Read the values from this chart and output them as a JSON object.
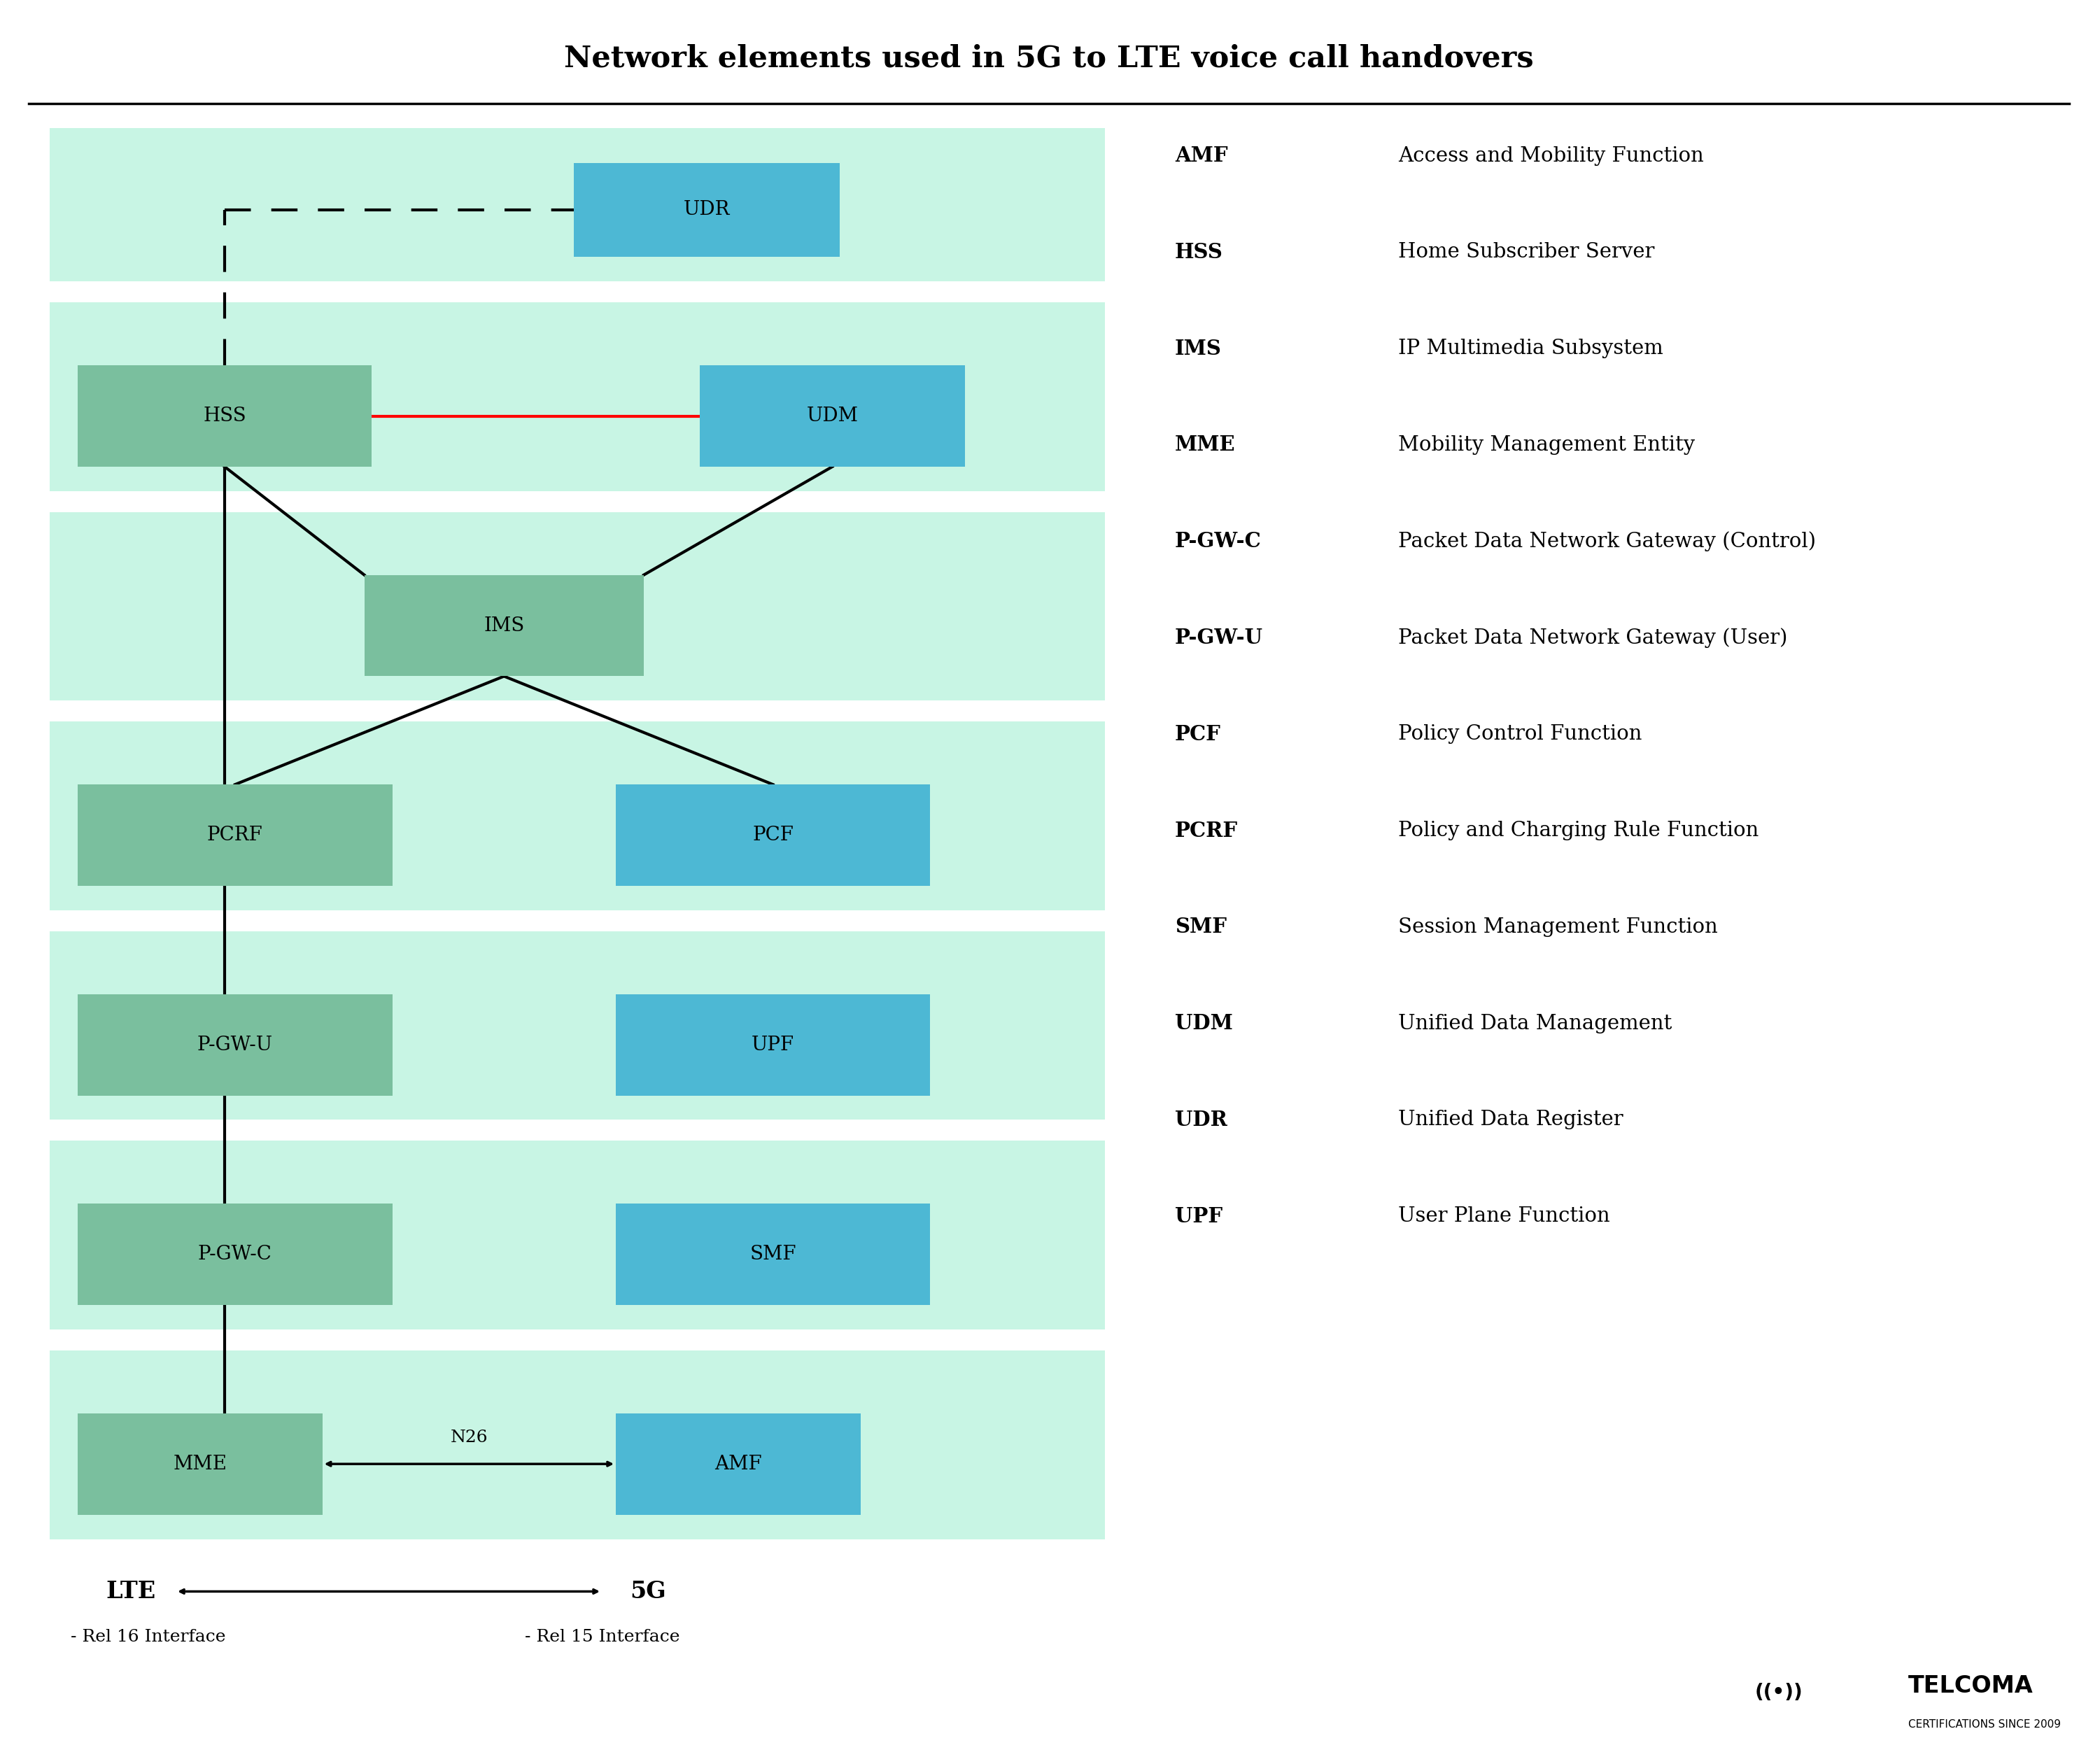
{
  "title": "Network elements used in 5G to LTE voice call handovers",
  "bg_color": "#ffffff",
  "light_mint": "#c8f5e4",
  "dark_mint": "#7abf9e",
  "cyan_blue": "#4db8d4",
  "legend": [
    [
      "AMF",
      "Access and Mobility Function"
    ],
    [
      "HSS",
      "Home Subscriber Server"
    ],
    [
      "IMS",
      "IP Multimedia Subsystem"
    ],
    [
      "MME",
      "Mobility Management Entity"
    ],
    [
      "P-GW-C",
      "Packet Data Network Gateway (Control)"
    ],
    [
      "P-GW-U",
      "Packet Data Network Gateway (User)"
    ],
    [
      "PCF",
      "Policy Control Function"
    ],
    [
      "PCRF",
      "Policy and Charging Rule Function"
    ],
    [
      "SMF",
      "Session Management Function"
    ],
    [
      "UDM",
      "Unified Data Management"
    ],
    [
      "UDR",
      "Unified Data Register"
    ],
    [
      "UPF",
      "User Plane Function"
    ]
  ],
  "lte_label": "LTE",
  "g5_label": "5G",
  "rel16": "- Rel 16 Interface",
  "rel15": "- Rel 15 Interface",
  "n26_label": "N26"
}
